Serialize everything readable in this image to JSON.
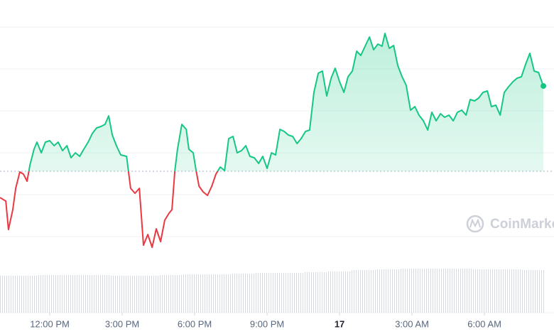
{
  "chart_data": [
    {
      "type": "line",
      "watermark": "CoinMarke",
      "x": [
        9.94,
        10.18,
        10.29,
        10.47,
        10.59,
        10.76,
        10.91,
        11.06,
        11.18,
        11.35,
        11.47,
        11.65,
        11.82,
        12,
        12.18,
        12.35,
        12.53,
        12.71,
        12.88,
        13.06,
        13.24,
        13.41,
        13.59,
        13.76,
        13.94,
        14.12,
        14.29,
        14.44,
        14.59,
        14.76,
        14.94,
        15.18,
        15.35,
        15.53,
        15.71,
        15.88,
        16.06,
        16.24,
        16.41,
        16.59,
        16.76,
        16.94,
        17.06,
        17.18,
        17.29,
        17.47,
        17.65,
        17.76,
        17.94,
        18.06,
        18.18,
        18.35,
        18.53,
        18.71,
        18.88,
        19.06,
        19.24,
        19.41,
        19.59,
        19.76,
        19.94,
        20.12,
        20.29,
        20.47,
        20.65,
        20.82,
        21,
        21.18,
        21.35,
        21.53,
        21.71,
        21.88,
        22.06,
        22.24,
        22.41,
        22.59,
        22.76,
        22.94,
        23.12,
        23.29,
        23.47,
        23.65,
        23.82,
        24,
        24.18,
        24.35,
        24.53,
        24.71,
        24.88,
        25.06,
        25.24,
        25.41,
        25.59,
        25.76,
        25.88,
        26.06,
        26.24,
        26.41,
        26.59,
        26.76,
        26.94,
        27.12,
        27.29,
        27.47,
        27.65,
        27.82,
        28,
        28.18,
        28.35,
        28.53,
        28.71,
        28.88,
        29.06,
        29.24,
        29.41,
        29.59,
        29.76,
        29.94,
        30.12,
        30.29,
        30.47,
        30.65,
        30.82,
        31,
        31.18,
        31.35,
        31.53,
        31.71,
        31.88,
        32.06,
        32.24,
        32.44
      ],
      "series": [
        {
          "color": "#16c784",
          "down_color": "#ea3943",
          "values": [
            122,
            117,
            77,
            105,
            135,
            158,
            155,
            145,
            168,
            190,
            200,
            185,
            200,
            202,
            195,
            200,
            188,
            195,
            178,
            185,
            180,
            190,
            200,
            212,
            220,
            222,
            225,
            237,
            210,
            195,
            182,
            180,
            135,
            128,
            135,
            55,
            70,
            52,
            78,
            60,
            90,
            100,
            105,
            160,
            190,
            225,
            218,
            190,
            185,
            160,
            138,
            130,
            125,
            138,
            155,
            165,
            160,
            205,
            208,
            185,
            188,
            195,
            180,
            178,
            170,
            180,
            163,
            185,
            182,
            218,
            215,
            210,
            208,
            198,
            205,
            215,
            217,
            270,
            297,
            300,
            265,
            290,
            304,
            285,
            270,
            292,
            300,
            328,
            322,
            335,
            348,
            330,
            338,
            335,
            353,
            332,
            336,
            308,
            292,
            280,
            245,
            250,
            238,
            230,
            217,
            242,
            230,
            240,
            235,
            238,
            230,
            242,
            245,
            238,
            260,
            258,
            262,
            270,
            272,
            250,
            252,
            238,
            270,
            278,
            285,
            290,
            292,
            310,
            325,
            300,
            298,
            279
          ]
        }
      ],
      "baseline": 159,
      "xlim": [
        9.94,
        32.88
      ],
      "ylim": [
        0,
        400
      ],
      "xticks": [
        {
          "value": 12,
          "label": "12:00 PM"
        },
        {
          "value": 15,
          "label": "3:00 PM"
        },
        {
          "value": 18,
          "label": "6:00 PM"
        },
        {
          "value": 21,
          "label": "9:00 PM"
        },
        {
          "value": 24,
          "label": "17"
        },
        {
          "value": 27,
          "label": "3:00 AM"
        },
        {
          "value": 30,
          "label": "6:00 AM"
        }
      ]
    },
    {
      "type": "bar",
      "color": "#d5d9e0",
      "x": [
        10,
        11,
        12,
        13,
        14,
        15,
        16,
        17,
        18,
        19,
        20,
        21,
        22,
        23,
        24,
        25,
        26,
        27,
        28,
        29,
        30,
        31,
        32
      ],
      "values": [
        52,
        52,
        53,
        53,
        53,
        52,
        52,
        53,
        54,
        54,
        55,
        56,
        56,
        57,
        58,
        60,
        61,
        62,
        62,
        62,
        61,
        61,
        60
      ],
      "ylim": [
        0,
        440
      ]
    }
  ]
}
